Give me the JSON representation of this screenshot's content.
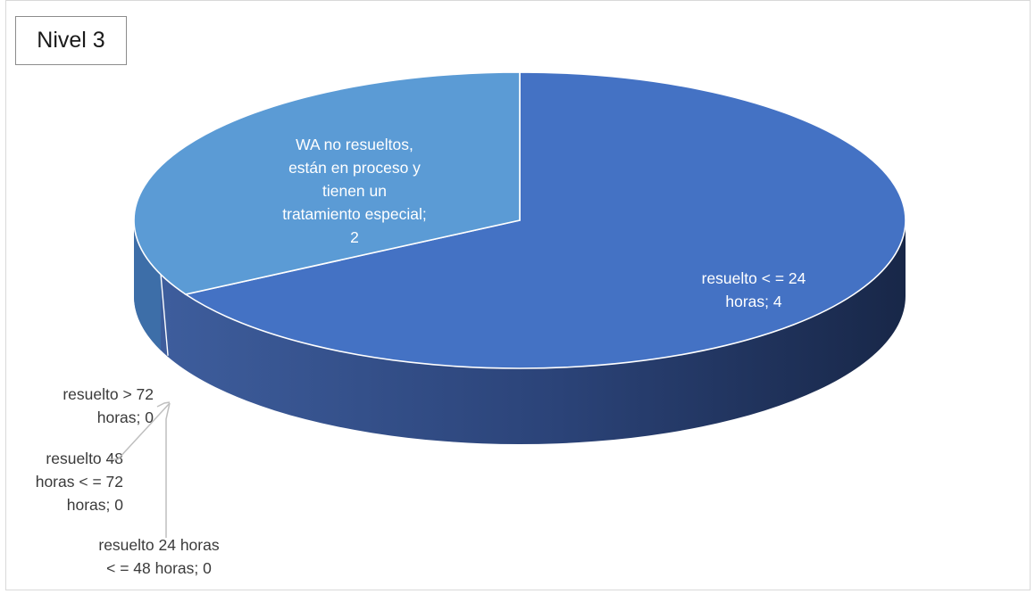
{
  "chart_data": {
    "type": "pie",
    "title": "Nivel 3",
    "categories": [
      "resuelto < = 24 horas",
      "resuelto 24 horas < = 48 horas",
      "resuelto 48 horas < = 72 horas",
      "resuelto > 72 horas",
      "WA no resueltos, están en proceso y tienen un tratamiento especial"
    ],
    "values": [
      4,
      0,
      0,
      0,
      2
    ],
    "data_labels": [
      "resuelto < = 24 horas; 4",
      "resuelto 24 horas < = 48 horas; 0",
      "resuelto 48 horas < = 72 horas; 0",
      "resuelto > 72 horas; 0",
      "WA no resueltos, están en proceso y tienen un tratamiento especial; 2"
    ],
    "colors": {
      "resuelto_24": "#4472c4",
      "no_resueltos": "#5b9bd5",
      "side_dark": "#1c2d55",
      "side_light": "#3f5f9f"
    },
    "legend": "none",
    "style": "3d"
  }
}
